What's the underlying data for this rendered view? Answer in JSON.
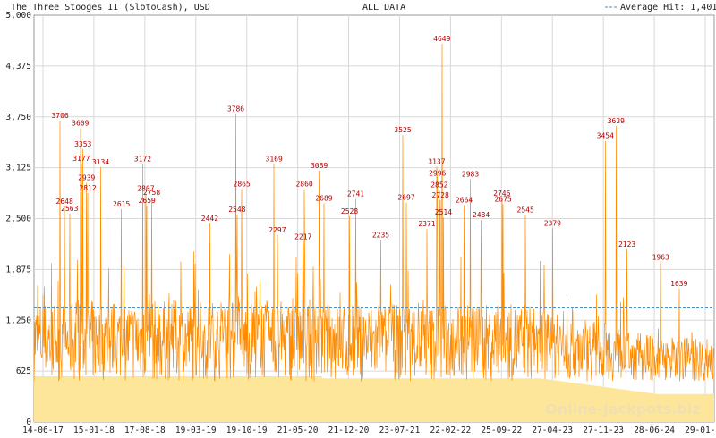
{
  "header": {
    "title": "The Three Stooges II (SlotoCash), USD",
    "range": "ALL DATA",
    "legend_label": "Average Hit: 1,401"
  },
  "watermark": "Online-Jackpots.biz",
  "colors": {
    "line": "#ff8c00",
    "fill": "#fde69a",
    "average": "#4a90c2",
    "peak_label": "#b00000",
    "grid": "#d8d8d8"
  },
  "chart_data": {
    "type": "line",
    "title": "The Three Stooges II (SlotoCash), USD",
    "ylim": [
      0,
      5000
    ],
    "y_ticks": [
      "0",
      "625",
      "1,250",
      "1,875",
      "2,500",
      "3,125",
      "3,750",
      "4,375",
      "5,000"
    ],
    "y_tick_values": [
      0,
      625,
      1250,
      1875,
      2500,
      3125,
      3750,
      4375,
      5000
    ],
    "x_ticks": [
      "14-06-17",
      "15-01-18",
      "17-08-18",
      "19-03-19",
      "19-10-19",
      "21-05-20",
      "21-12-20",
      "23-07-21",
      "22-02-22",
      "25-09-22",
      "27-04-23",
      "27-11-23",
      "28-06-24",
      "29-01-25"
    ],
    "average_hit": 1401,
    "grid": true,
    "legend": "top-right",
    "annotated_peaks": [
      {
        "date": "2017-10-01",
        "value": 3706
      },
      {
        "date": "2017-12-25",
        "value": 3609
      },
      {
        "date": "2018-01-05",
        "value": 3353
      },
      {
        "date": "2017-12-29",
        "value": 3177
      },
      {
        "date": "2018-03-20",
        "value": 3134
      },
      {
        "date": "2018-01-20",
        "value": 2939
      },
      {
        "date": "2018-01-25",
        "value": 2812
      },
      {
        "date": "2017-10-20",
        "value": 2648
      },
      {
        "date": "2017-11-10",
        "value": 2563
      },
      {
        "date": "2018-09-12",
        "value": 3172
      },
      {
        "date": "2018-09-25",
        "value": 2807
      },
      {
        "date": "2018-10-20",
        "value": 2758
      },
      {
        "date": "2018-09-30",
        "value": 2659
      },
      {
        "date": "2018-06-15",
        "value": 2615
      },
      {
        "date": "2019-10-07",
        "value": 3786
      },
      {
        "date": "2019-11-01",
        "value": 2865
      },
      {
        "date": "2019-10-12",
        "value": 2548
      },
      {
        "date": "2019-06-20",
        "value": 2442
      },
      {
        "date": "2020-03-15",
        "value": 3169
      },
      {
        "date": "2020-03-29",
        "value": 2297
      },
      {
        "date": "2020-07-15",
        "value": 2217
      },
      {
        "date": "2020-09-20",
        "value": 3089
      },
      {
        "date": "2020-07-20",
        "value": 2860
      },
      {
        "date": "2020-10-10",
        "value": 2689
      },
      {
        "date": "2021-02-20",
        "value": 2741
      },
      {
        "date": "2021-01-25",
        "value": 2528
      },
      {
        "date": "2021-06-05",
        "value": 2235
      },
      {
        "date": "2021-09-05",
        "value": 3525
      },
      {
        "date": "2021-09-20",
        "value": 2697
      },
      {
        "date": "2021-12-15",
        "value": 2371
      },
      {
        "date": "2022-02-16",
        "value": 4649
      },
      {
        "date": "2022-01-25",
        "value": 3137
      },
      {
        "date": "2022-01-28",
        "value": 2996
      },
      {
        "date": "2022-02-05",
        "value": 2852
      },
      {
        "date": "2022-02-10",
        "value": 2728
      },
      {
        "date": "2022-02-22",
        "value": 2514
      },
      {
        "date": "2022-06-15",
        "value": 2983
      },
      {
        "date": "2022-05-20",
        "value": 2664
      },
      {
        "date": "2022-07-30",
        "value": 2484
      },
      {
        "date": "2022-10-25",
        "value": 2746
      },
      {
        "date": "2022-10-30",
        "value": 2675
      },
      {
        "date": "2023-02-01",
        "value": 2545
      },
      {
        "date": "2023-05-25",
        "value": 2379
      },
      {
        "date": "2024-01-01",
        "value": 3454
      },
      {
        "date": "2024-02-15",
        "value": 3639
      },
      {
        "date": "2024-04-01",
        "value": 2123
      },
      {
        "date": "2024-08-20",
        "value": 1963
      },
      {
        "date": "2024-11-05",
        "value": 1639
      }
    ]
  }
}
